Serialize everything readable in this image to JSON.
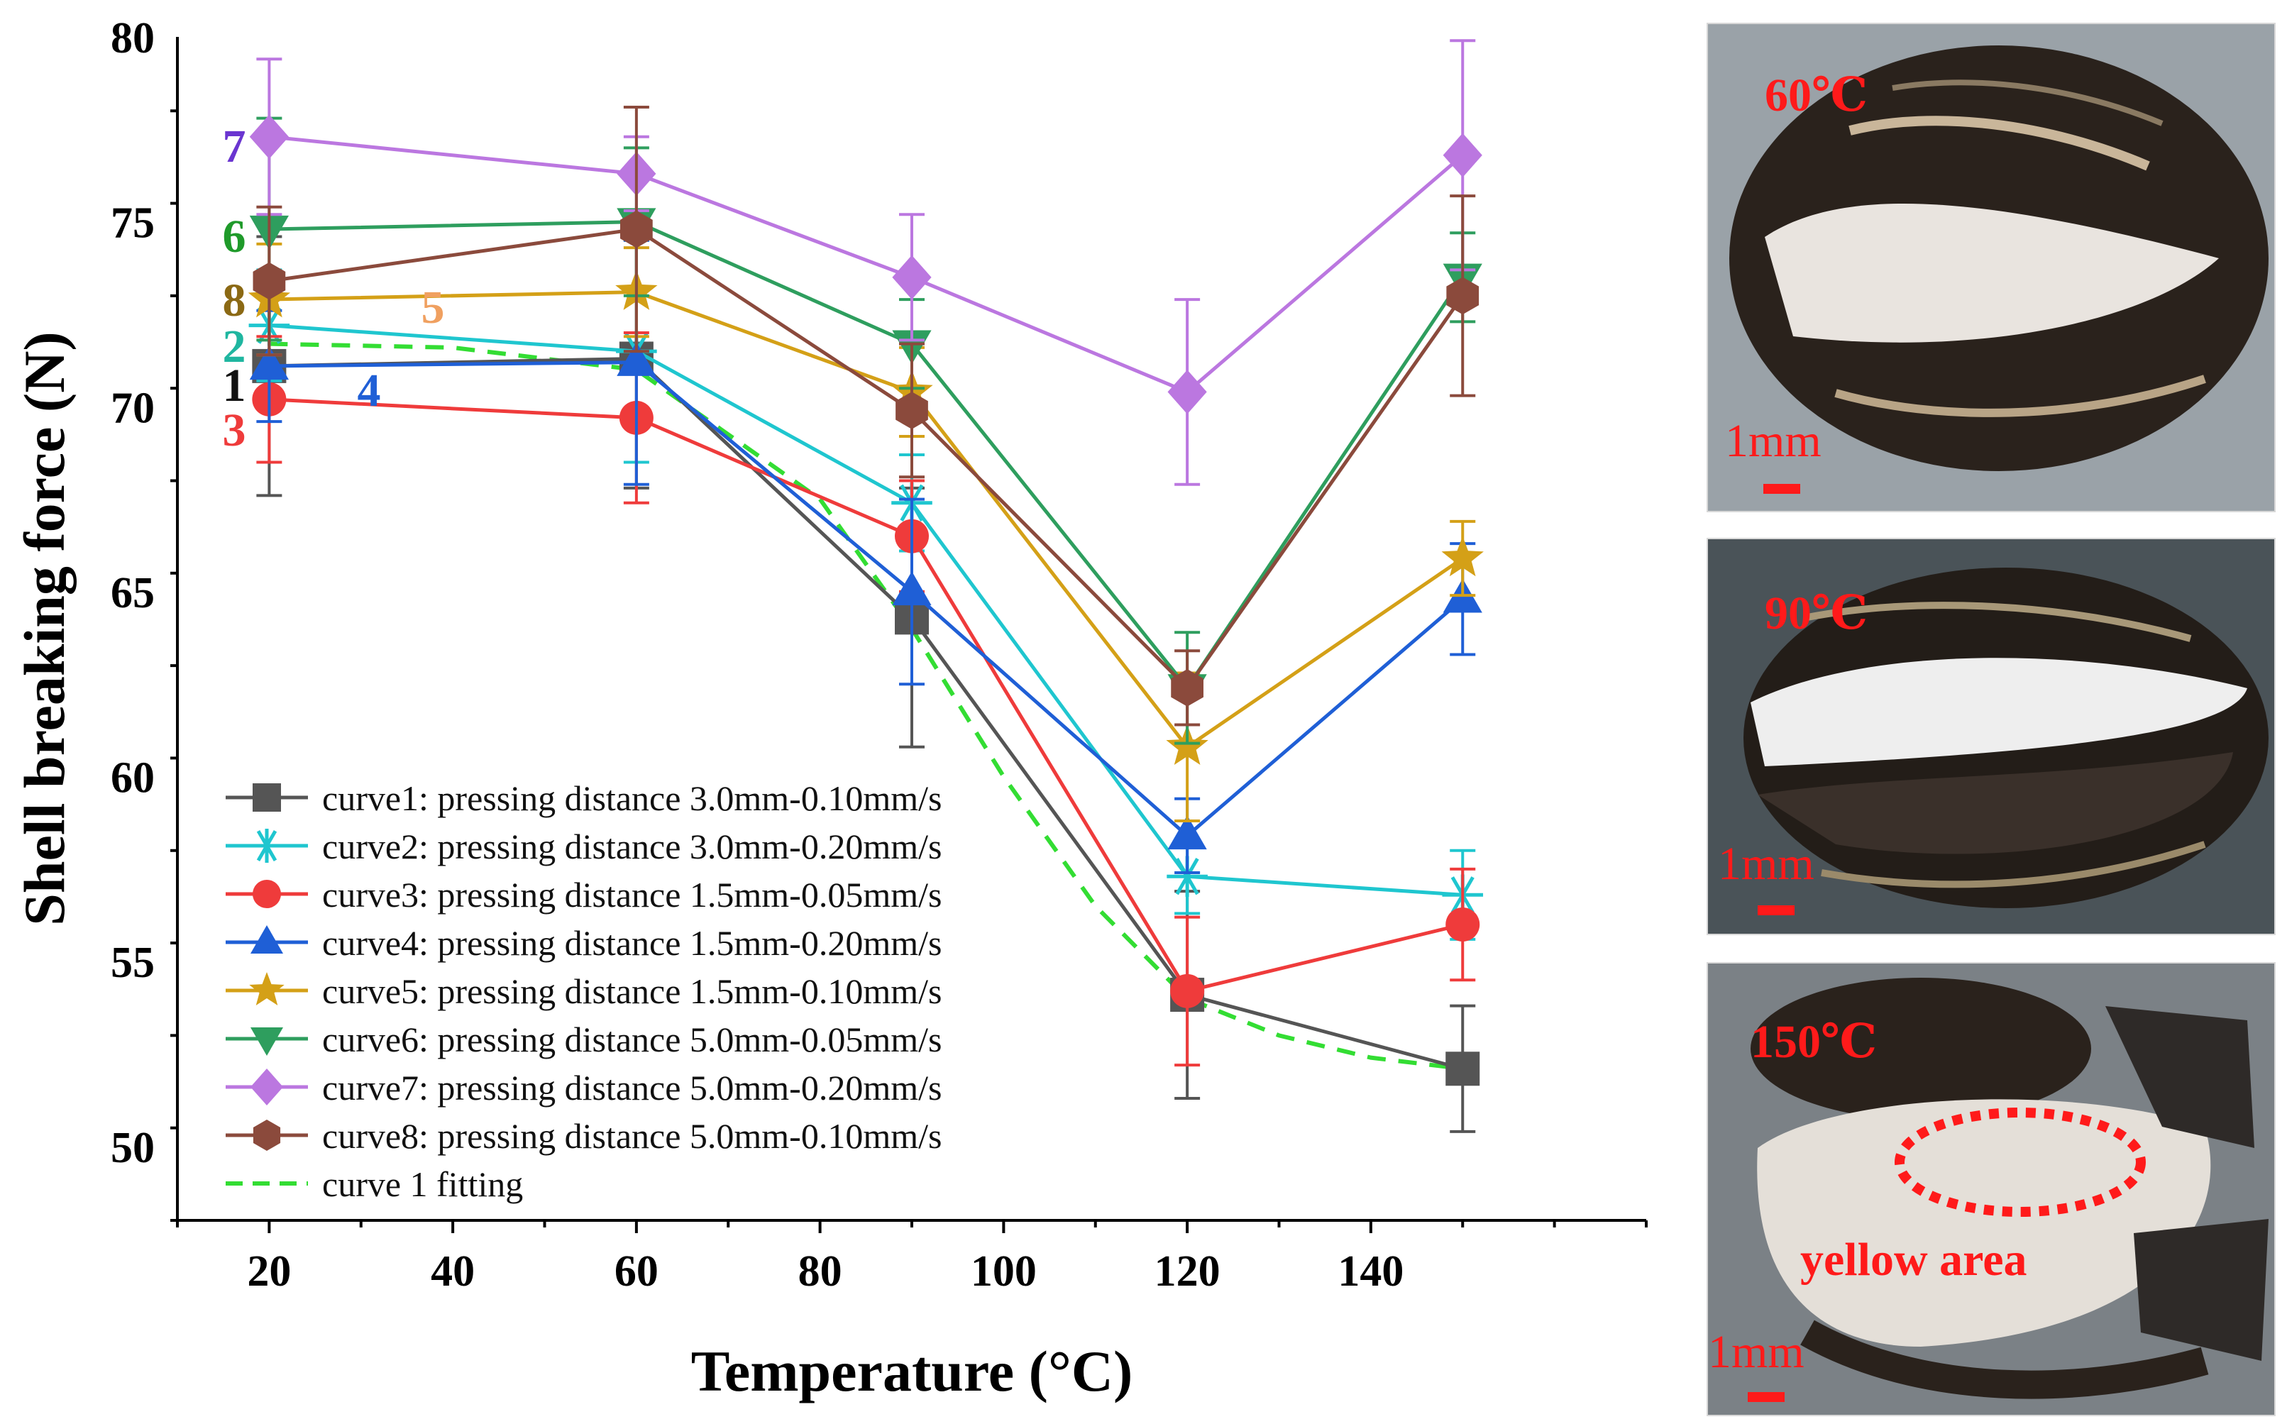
{
  "chart_data": {
    "type": "line",
    "xlabel": "Temperature (°C)",
    "ylabel": "Shell breaking force (N)",
    "xlim": [
      10,
      170
    ],
    "ylim": [
      48,
      80
    ],
    "x_ticks": [
      20,
      40,
      60,
      80,
      100,
      120,
      140
    ],
    "y_ticks": [
      50,
      55,
      60,
      65,
      70,
      75,
      80
    ],
    "x": [
      20,
      60,
      90,
      120,
      150
    ],
    "legend_position": "bottom-left",
    "series": [
      {
        "name": "curve1: pressing distance 3.0mm-0.10mm/s",
        "values": [
          71.1,
          71.3,
          64.3,
          54.1,
          52.1
        ],
        "errors": [
          3.5,
          3.5,
          3.5,
          2.8,
          1.7
        ],
        "color": "#555555",
        "marker": "square",
        "tag": "1",
        "tag_color": "#111111"
      },
      {
        "name": "curve2: pressing distance 3.0mm-0.20mm/s",
        "values": [
          72.2,
          71.5,
          67.4,
          57.3,
          56.8
        ],
        "errors": [
          1.5,
          3.0,
          1.3,
          1.0,
          1.2
        ],
        "color": "#1fc6cf",
        "marker": "asterisk",
        "tag": "2",
        "tag_color": "#1fb6a0"
      },
      {
        "name": "curve3: pressing distance 1.5mm-0.05mm/s",
        "values": [
          70.2,
          69.7,
          66.5,
          54.2,
          56.0
        ],
        "errors": [
          1.7,
          2.3,
          1.5,
          2.0,
          1.5
        ],
        "color": "#ef3b3b",
        "marker": "circle",
        "tag": "3",
        "tag_color": "#ef3b3b"
      },
      {
        "name": "curve4: pressing distance 1.5mm-0.20mm/s",
        "values": [
          71.1,
          71.2,
          65.0,
          58.4,
          64.8
        ],
        "errors": [
          1.5,
          3.3,
          2.5,
          1.0,
          1.5
        ],
        "color": "#1f5fd6",
        "marker": "triangle-up",
        "tag": "4",
        "tag_color": "#1f5fd6"
      },
      {
        "name": "curve5: pressing distance 1.5mm-0.10mm/s",
        "values": [
          72.9,
          73.1,
          70.4,
          60.8,
          65.9
        ],
        "errors": [
          1.5,
          1.2,
          1.2,
          2.0,
          1.0
        ],
        "color": "#d4a017",
        "marker": "star",
        "tag": "5",
        "tag_color": "#f0a060"
      },
      {
        "name": "curve6: pressing distance 5.0mm-0.05mm/s",
        "values": [
          74.8,
          75.0,
          71.7,
          62.4,
          73.5
        ],
        "errors": [
          3.0,
          2.0,
          1.2,
          1.5,
          1.2
        ],
        "color": "#2e9e5e",
        "marker": "triangle-down",
        "tag": "6",
        "tag_color": "#1f9a2a"
      },
      {
        "name": "curve7: pressing distance 5.0mm-0.20mm/s",
        "values": [
          77.3,
          76.3,
          73.5,
          70.4,
          76.8
        ],
        "errors": [
          2.1,
          1.0,
          1.7,
          2.5,
          3.1
        ],
        "color": "#bb77e0",
        "marker": "diamond",
        "tag": "7",
        "tag_color": "#6a35d0"
      },
      {
        "name": "curve8: pressing distance 5.0mm-0.10mm/s",
        "values": [
          73.4,
          74.8,
          69.9,
          62.4,
          73.0
        ],
        "errors": [
          2.0,
          3.3,
          1.8,
          1.0,
          2.7
        ],
        "color": "#8b4a3c",
        "marker": "hexagon",
        "tag": "8",
        "tag_color": "#8b6914"
      },
      {
        "name": "curve 1 fitting",
        "x": [
          20,
          40,
          60,
          80,
          90,
          100,
          110,
          120,
          130,
          140,
          150
        ],
        "values": [
          71.7,
          71.6,
          71.0,
          67.5,
          64.0,
          60.0,
          56.5,
          54.0,
          53.0,
          52.4,
          52.1
        ],
        "color": "#33dd33",
        "dashed": true
      }
    ]
  },
  "photos": [
    {
      "temperature": "60℃",
      "scale": "1mm"
    },
    {
      "temperature": "90℃",
      "scale": "1mm"
    },
    {
      "temperature": "150℃",
      "scale": "1mm",
      "annotation": "yellow area"
    }
  ]
}
